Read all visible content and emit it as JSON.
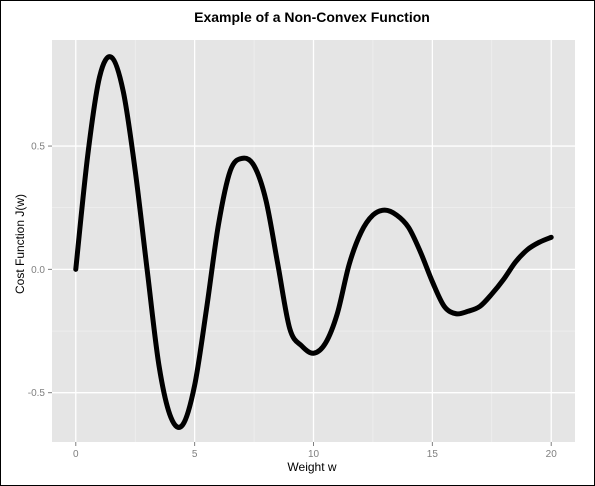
{
  "chart_data": {
    "type": "line",
    "title": "Example of a Non-Convex Function",
    "xlabel": "Weight w",
    "ylabel": "Cost Function J(w)",
    "xlim": [
      -1,
      21
    ],
    "ylim": [
      -0.7,
      0.93
    ],
    "x_ticks": [
      0,
      5,
      10,
      15,
      20
    ],
    "x_tick_labels": [
      "0",
      "5",
      "10",
      "15",
      "20"
    ],
    "y_ticks": [
      -0.5,
      0.0,
      0.5
    ],
    "y_tick_labels": [
      "-0.5",
      "0.0",
      "0.5"
    ],
    "grid": true,
    "background": "#e5e5e5",
    "line_color": "#000000",
    "series": [
      {
        "x": [
          0,
          0.5,
          1.0,
          1.5,
          2.0,
          2.5,
          3.0,
          3.5,
          4.0,
          4.5,
          5.0,
          5.5,
          6.0,
          6.5,
          7.0,
          7.5,
          8.0,
          8.5,
          9.0,
          9.5,
          10.0,
          10.5,
          11.0,
          11.5,
          12.0,
          12.5,
          13.0,
          13.5,
          14.0,
          14.5,
          15.0,
          15.5,
          16.0,
          16.5,
          17.0,
          17.5,
          18.0,
          18.5,
          19.0,
          19.5,
          20.0
        ],
        "y": [
          0.0,
          0.46,
          0.78,
          0.86,
          0.72,
          0.4,
          0.0,
          -0.39,
          -0.6,
          -0.63,
          -0.47,
          -0.16,
          0.18,
          0.4,
          0.45,
          0.42,
          0.28,
          0.02,
          -0.24,
          -0.31,
          -0.34,
          -0.3,
          -0.18,
          0.02,
          0.15,
          0.22,
          0.24,
          0.22,
          0.17,
          0.07,
          -0.05,
          -0.15,
          -0.18,
          -0.17,
          -0.15,
          -0.1,
          -0.04,
          0.03,
          0.08,
          0.11,
          0.13
        ]
      }
    ]
  }
}
